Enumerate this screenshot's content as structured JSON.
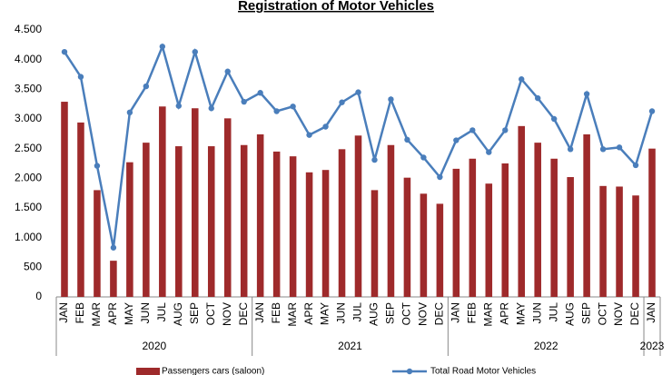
{
  "chart_data": {
    "type": "bar",
    "title": "Registration of Motor Vehicles",
    "categories": [
      "JAN",
      "FEB",
      "MAR",
      "APR",
      "MAY",
      "JUN",
      "JUL",
      "AUG",
      "SEP",
      "OCT",
      "NOV",
      "DEC",
      "JAN",
      "FEB",
      "MAR",
      "APR",
      "MAY",
      "JUN",
      "JUL",
      "AUG",
      "SEP",
      "OCT",
      "NOV",
      "DEC",
      "JAN",
      "FEB",
      "MAR",
      "APR",
      "MAY",
      "JUN",
      "JUL",
      "AUG",
      "SEP",
      "OCT",
      "NOV",
      "DEC",
      "JAN"
    ],
    "x_groups": [
      "2020",
      "2021",
      "2022",
      "2023"
    ],
    "series": [
      {
        "name": "Passengers cars (saloon)",
        "type": "bar",
        "color": "#9e2a2b",
        "values": [
          3290,
          2940,
          1800,
          610,
          2270,
          2600,
          3210,
          2540,
          3180,
          2540,
          3010,
          2560,
          2740,
          2450,
          2370,
          2100,
          2140,
          2490,
          2720,
          1800,
          2560,
          2010,
          1740,
          1570,
          2160,
          2330,
          1910,
          2250,
          2880,
          2600,
          2330,
          2020,
          2740,
          1870,
          1860,
          1710,
          2500
        ]
      },
      {
        "name": "Total Road Motor Vehicles",
        "type": "line",
        "color": "#4a7ebb",
        "values": [
          4130,
          3710,
          2210,
          830,
          3110,
          3550,
          4220,
          3220,
          4130,
          3180,
          3800,
          3290,
          3440,
          3130,
          3210,
          2730,
          2870,
          3280,
          3450,
          2310,
          3330,
          2650,
          2350,
          2020,
          2640,
          2810,
          2440,
          2810,
          3670,
          3350,
          3000,
          2490,
          3420,
          2490,
          2520,
          2220,
          3130
        ]
      }
    ],
    "ylim": [
      0,
      4500
    ],
    "yticks": [
      0,
      500,
      {
        "value": 1000,
        "label": "1.000"
      },
      {
        "value": 1500,
        "label": "1.500"
      },
      {
        "value": 2000,
        "label": "2.000"
      },
      {
        "value": 2500,
        "label": "2.500"
      },
      {
        "value": 3000,
        "label": "3.000"
      },
      {
        "value": 3500,
        "label": "3.500"
      },
      {
        "value": 4000,
        "label": "4.000"
      },
      {
        "value": 4500,
        "label": "4.500"
      }
    ],
    "grid": false
  }
}
